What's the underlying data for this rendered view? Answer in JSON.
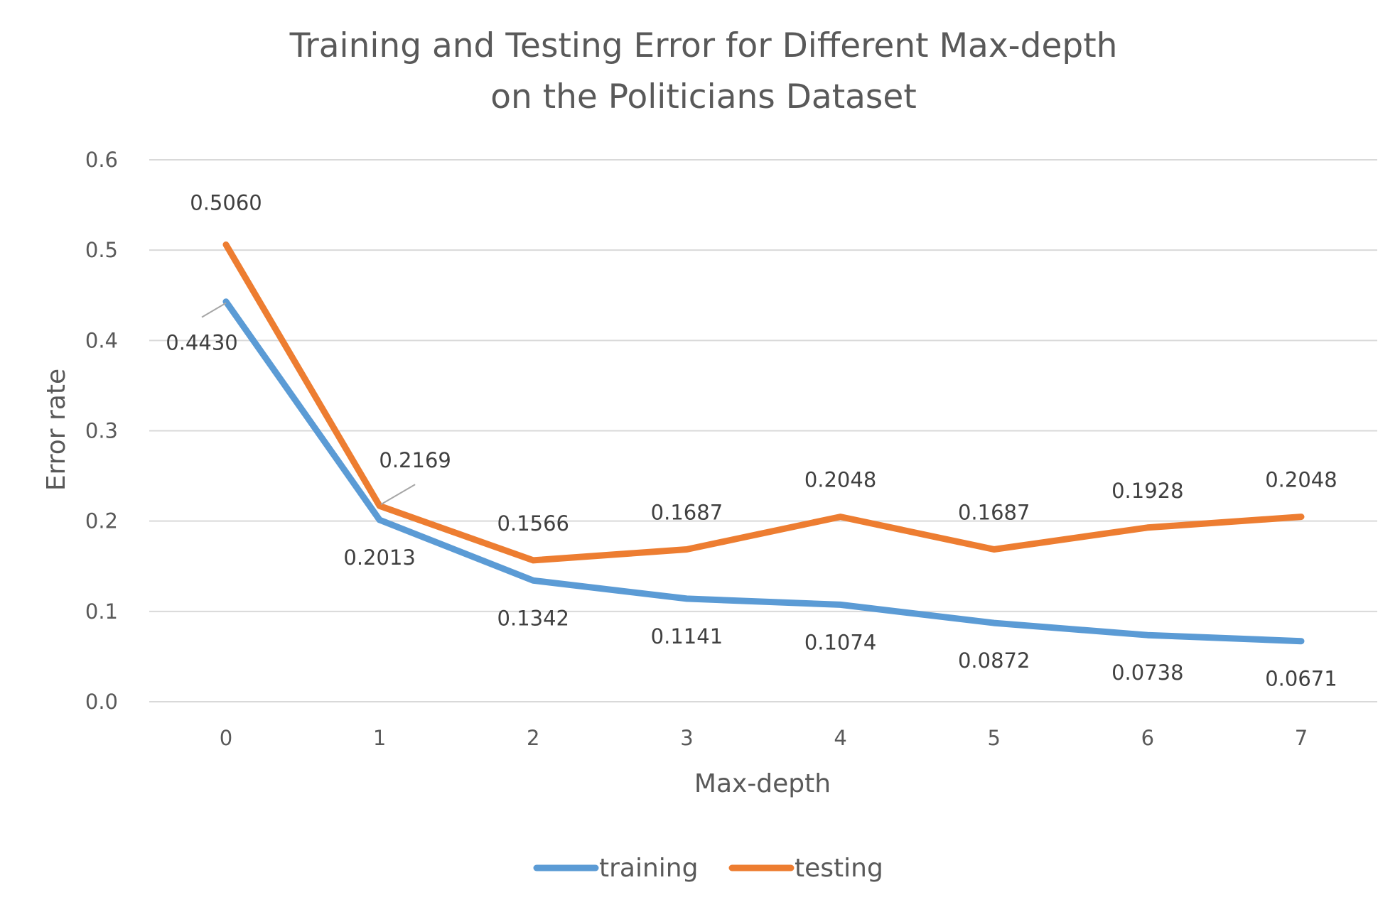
{
  "chart_data": {
    "type": "line",
    "title_lines": [
      "Training and Testing Error for Different Max-depth",
      "on the Politicians Dataset"
    ],
    "xlabel": "Max-depth",
    "ylabel": "Error rate",
    "categories": [
      "0",
      "1",
      "2",
      "3",
      "4",
      "5",
      "6",
      "7"
    ],
    "yticks": [
      "0.0",
      "0.1",
      "0.2",
      "0.3",
      "0.4",
      "0.5",
      "0.6"
    ],
    "ylim": [
      0,
      0.6
    ],
    "grid": true,
    "legend_position": "bottom",
    "series": [
      {
        "name": "training",
        "color": "#5b9bd5",
        "values": [
          0.443,
          0.2013,
          0.1342,
          0.1141,
          0.1074,
          0.0872,
          0.0738,
          0.0671
        ],
        "labels": [
          "0.4430",
          "0.2013",
          "0.1342",
          "0.1141",
          "0.1074",
          "0.0872",
          "0.0738",
          "0.0671"
        ]
      },
      {
        "name": "testing",
        "color": "#ed7d31",
        "values": [
          0.506,
          0.2169,
          0.1566,
          0.1687,
          0.2048,
          0.1687,
          0.1928,
          0.2048
        ],
        "labels": [
          "0.5060",
          "0.2169",
          "0.1566",
          "0.1687",
          "0.2048",
          "0.1687",
          "0.1928",
          "0.2048"
        ]
      }
    ]
  }
}
